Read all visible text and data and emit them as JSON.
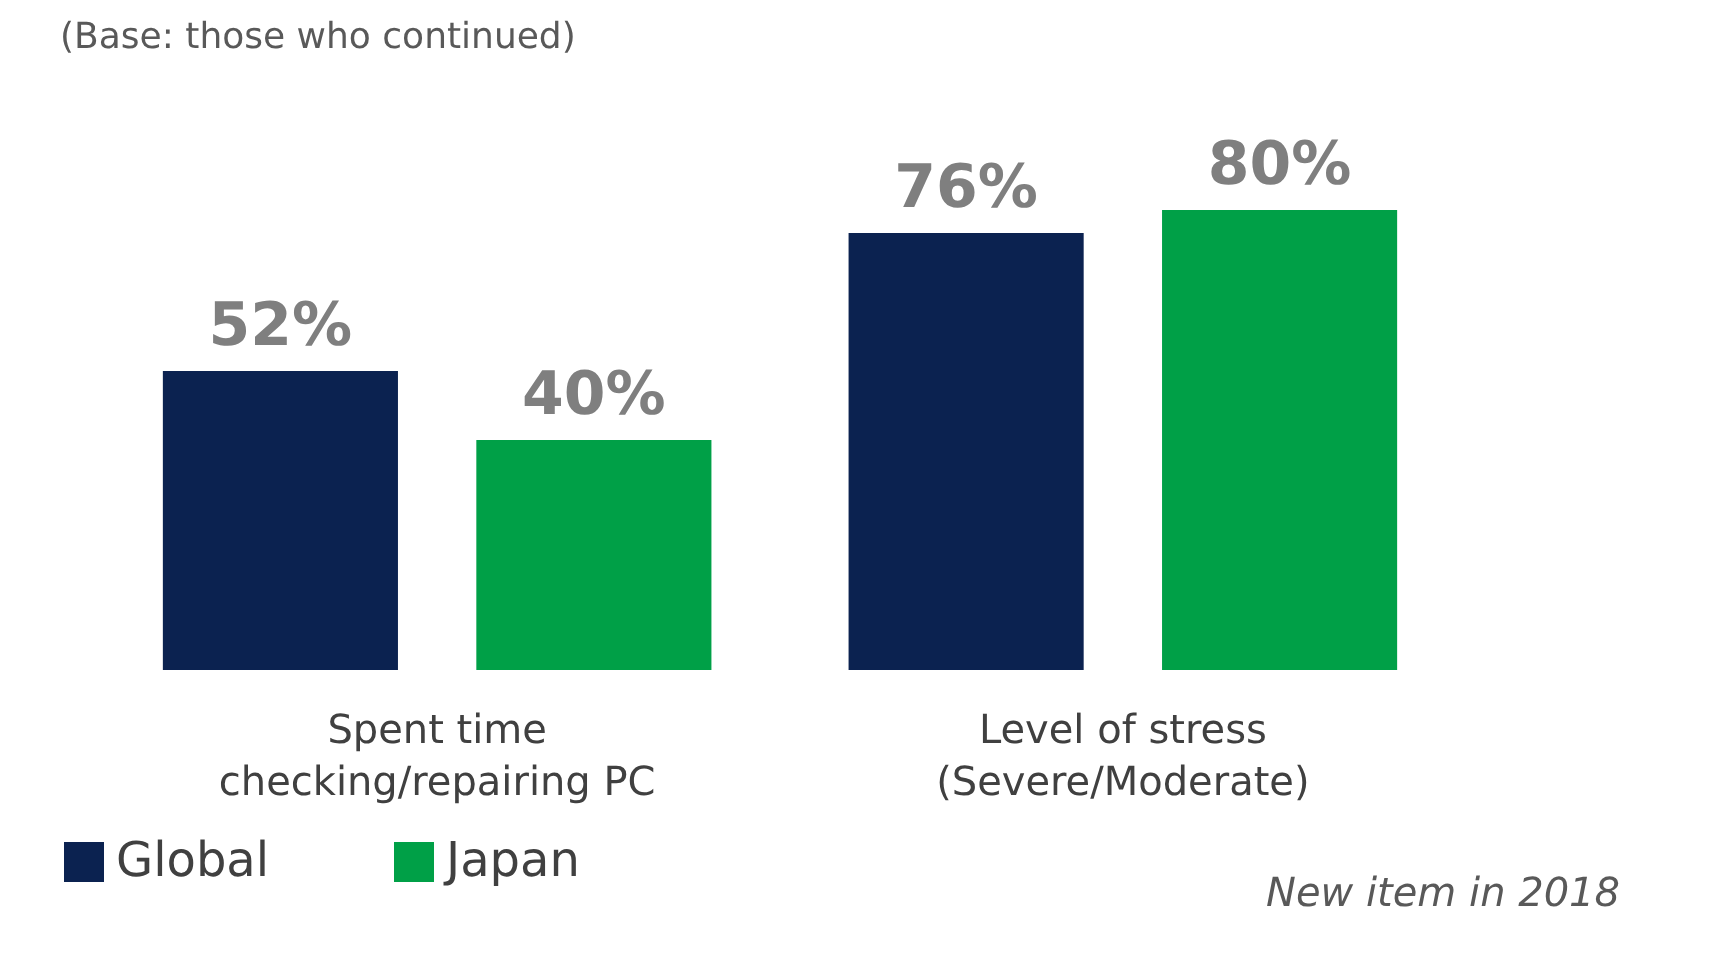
{
  "chart_data": {
    "type": "bar",
    "subtitle": "(Base: those who continued)",
    "categories": [
      "Spent time\nchecking/repairing PC",
      "Level of stress\n(Severe/Moderate)"
    ],
    "series": [
      {
        "name": "Global",
        "color": "#0b2250",
        "values": [
          52,
          76
        ],
        "value_labels": [
          "52%",
          "76%"
        ]
      },
      {
        "name": "Japan",
        "color": "#00a047",
        "values": [
          40,
          80
        ],
        "value_labels": [
          "40%",
          "80%"
        ]
      }
    ],
    "legend": "bottom",
    "annotations": [
      "New item in 2018"
    ]
  }
}
